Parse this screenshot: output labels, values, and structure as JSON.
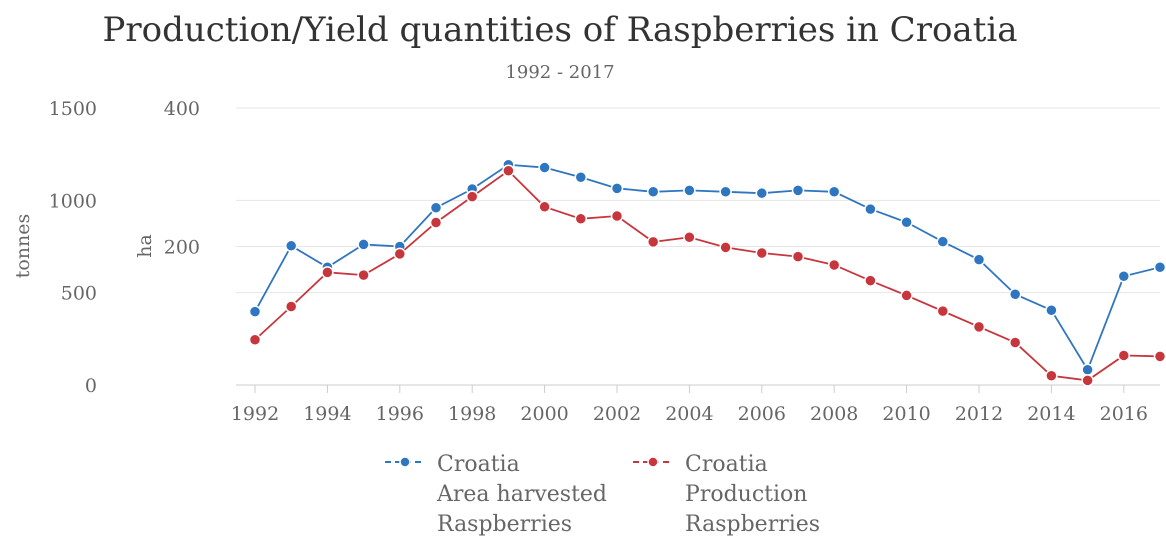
{
  "chart_data": {
    "type": "line",
    "title": "Production/Yield quantities of Raspberries in Croatia",
    "subtitle": "1992 - 2017",
    "x": [
      1992,
      1993,
      1994,
      1995,
      1996,
      1997,
      1998,
      1999,
      2000,
      2001,
      2002,
      2003,
      2004,
      2005,
      2006,
      2007,
      2008,
      2009,
      2010,
      2011,
      2012,
      2013,
      2014,
      2015,
      2016,
      2017
    ],
    "x_ticks": [
      "1992",
      "1994",
      "1996",
      "1998",
      "2000",
      "2002",
      "2004",
      "2006",
      "2008",
      "2010",
      "2012",
      "2014",
      "2016"
    ],
    "y_left": {
      "label": "tonnes",
      "ticks": [
        "0",
        "500",
        "1000",
        "1500"
      ],
      "range": [
        0,
        1500
      ]
    },
    "y_right": {
      "label": "ha",
      "ticks": [
        "200",
        "400"
      ],
      "range": [
        0,
        400
      ]
    },
    "grid": true,
    "legend_position": "bottom",
    "series": [
      {
        "name_lines": [
          "Croatia",
          "Area harvested",
          "Raspberries"
        ],
        "axis": "ha",
        "color": "#2f76c0",
        "values": [
          106,
          201,
          170,
          203,
          200,
          256,
          283,
          318,
          314,
          300,
          284,
          279,
          281,
          279,
          277,
          281,
          279,
          254,
          235,
          207,
          181,
          131,
          108,
          22,
          157,
          170
        ]
      },
      {
        "name_lines": [
          "Croatia",
          "Production",
          "Raspberries"
        ],
        "axis": "tonnes",
        "color": "#c8363d",
        "values": [
          245,
          425,
          610,
          595,
          710,
          880,
          1020,
          1160,
          965,
          900,
          915,
          775,
          800,
          745,
          715,
          695,
          650,
          565,
          485,
          400,
          315,
          230,
          50,
          25,
          160,
          155
        ]
      }
    ]
  }
}
